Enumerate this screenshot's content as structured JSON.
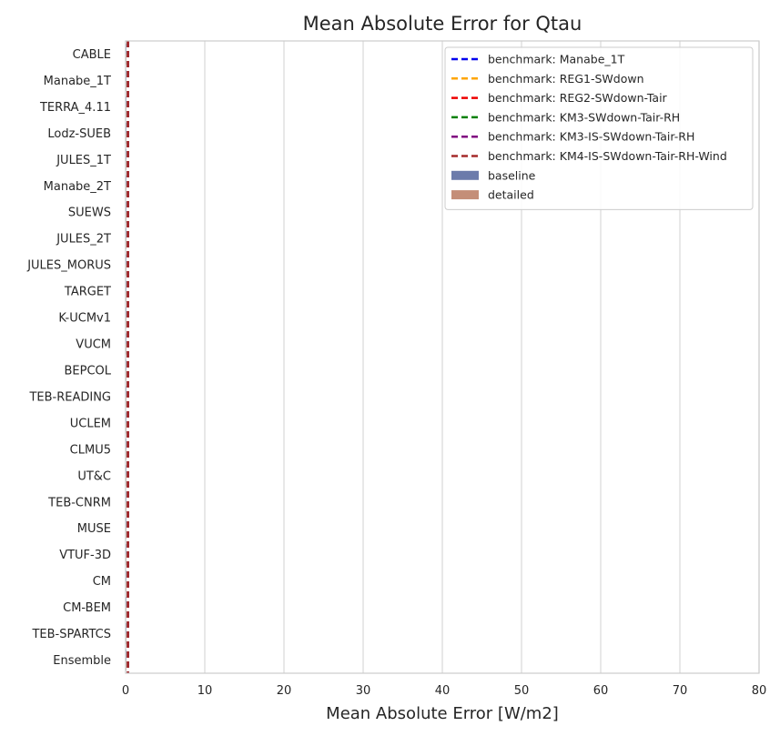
{
  "chart_data": {
    "type": "bar",
    "orientation": "horizontal",
    "title": "Mean Absolute Error for Qtau",
    "xlabel": "Mean Absolute Error [W/m2]",
    "ylabel": "",
    "xlim": [
      0,
      80
    ],
    "xticks": [
      0,
      10,
      20,
      30,
      40,
      50,
      60,
      70,
      80
    ],
    "grid": "vertical",
    "legend_position": "top-right",
    "categories": [
      "CABLE",
      "Manabe_1T",
      "TERRA_4.11",
      "Lodz-SUEB",
      "JULES_1T",
      "Manabe_2T",
      "SUEWS",
      "JULES_2T",
      "JULES_MORUS",
      "TARGET",
      "K-UCMv1",
      "VUCM",
      "BEPCOL",
      "TEB-READING",
      "UCLEM",
      "CLMU5",
      "UT&C",
      "TEB-CNRM",
      "MUSE",
      "VTUF-3D",
      "CM",
      "CM-BEM",
      "TEB-SPARTCS",
      "Ensemble"
    ],
    "series": [
      {
        "name": "baseline",
        "color": "#6c7bab",
        "values": [
          0.1,
          0.1,
          0.1,
          0.1,
          0.1,
          0.1,
          0.1,
          0.1,
          0.1,
          0.1,
          0.1,
          0.1,
          0.1,
          0.1,
          0.1,
          0.1,
          0.1,
          0.1,
          0.1,
          0.1,
          0.1,
          0.1,
          0.1,
          0.1
        ]
      },
      {
        "name": "detailed",
        "color": "#c48e78",
        "values": [
          0.1,
          0.1,
          0.1,
          0.1,
          0.1,
          0.1,
          0.1,
          0.1,
          0.1,
          0.1,
          0.1,
          0.1,
          0.1,
          0.1,
          0.1,
          0.1,
          0.1,
          0.1,
          0.1,
          0.1,
          0.1,
          0.1,
          0.1,
          0.1
        ]
      }
    ],
    "benchmarks": [
      {
        "name": "benchmark: Manabe_1T",
        "value": 0.3,
        "color": "#0000ee"
      },
      {
        "name": "benchmark: REG1-SWdown",
        "value": 0.3,
        "color": "#ffa500"
      },
      {
        "name": "benchmark: REG2-SWdown-Tair",
        "value": 0.3,
        "color": "#ee0000"
      },
      {
        "name": "benchmark: KM3-SWdown-Tair-RH",
        "value": 0.3,
        "color": "#008000"
      },
      {
        "name": "benchmark: KM3-IS-SWdown-Tair-RH",
        "value": 0.3,
        "color": "#800080"
      },
      {
        "name": "benchmark: KM4-IS-SWdown-Tair-RH-Wind",
        "value": 0.3,
        "color": "#a52a2a"
      }
    ]
  }
}
